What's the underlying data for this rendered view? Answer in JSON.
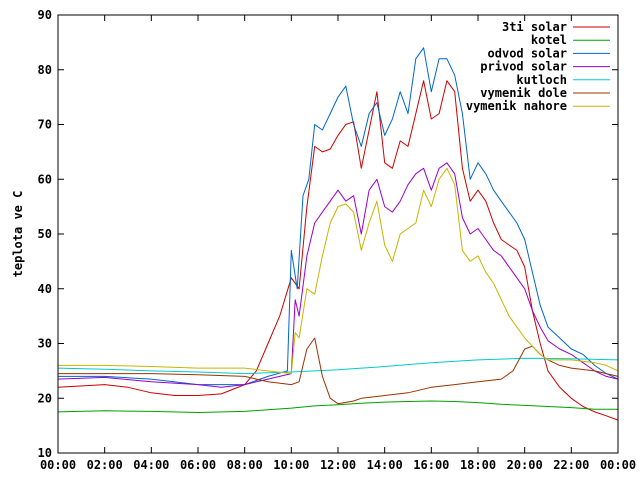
{
  "chart_data": {
    "type": "line",
    "title": "",
    "xlabel": "",
    "ylabel": "teplota ve C",
    "xlim": [
      "00:00",
      "24:00"
    ],
    "ylim": [
      10,
      90
    ],
    "x_ticks": [
      "00:00",
      "02:00",
      "04:00",
      "06:00",
      "08:00",
      "10:00",
      "12:00",
      "14:00",
      "16:00",
      "18:00",
      "20:00",
      "22:00",
      "00:00"
    ],
    "y_ticks": [
      10,
      20,
      30,
      40,
      50,
      60,
      70,
      80,
      90
    ],
    "grid": false,
    "legend_position": "top-right",
    "series": [
      {
        "name": "3ti solar",
        "color": "#cc0000",
        "points": [
          [
            "00:00",
            22
          ],
          [
            "02:00",
            22.5
          ],
          [
            "03:00",
            22
          ],
          [
            "04:00",
            21
          ],
          [
            "05:00",
            20.5
          ],
          [
            "06:00",
            20.5
          ],
          [
            "07:00",
            20.8
          ],
          [
            "08:00",
            22.5
          ],
          [
            "08:30",
            25
          ],
          [
            "09:00",
            30
          ],
          [
            "09:30",
            35
          ],
          [
            "10:00",
            42
          ],
          [
            "10:20",
            40
          ],
          [
            "10:40",
            55
          ],
          [
            "11:00",
            66
          ],
          [
            "11:20",
            65
          ],
          [
            "11:40",
            65.5
          ],
          [
            "12:00",
            68
          ],
          [
            "12:20",
            70
          ],
          [
            "12:40",
            70.5
          ],
          [
            "13:00",
            62
          ],
          [
            "13:20",
            69
          ],
          [
            "13:40",
            76
          ],
          [
            "14:00",
            63
          ],
          [
            "14:20",
            62
          ],
          [
            "14:40",
            67
          ],
          [
            "15:00",
            66
          ],
          [
            "15:20",
            72
          ],
          [
            "15:40",
            78
          ],
          [
            "16:00",
            71
          ],
          [
            "16:20",
            72
          ],
          [
            "16:40",
            78
          ],
          [
            "17:00",
            76
          ],
          [
            "17:20",
            62
          ],
          [
            "17:40",
            56
          ],
          [
            "18:00",
            58
          ],
          [
            "18:20",
            56
          ],
          [
            "18:40",
            52
          ],
          [
            "19:00",
            49
          ],
          [
            "19:20",
            48
          ],
          [
            "19:40",
            47
          ],
          [
            "20:00",
            44
          ],
          [
            "20:20",
            36
          ],
          [
            "20:40",
            30
          ],
          [
            "21:00",
            25
          ],
          [
            "21:30",
            22
          ],
          [
            "22:00",
            20
          ],
          [
            "22:30",
            18.5
          ],
          [
            "23:00",
            17.5
          ],
          [
            "23:30",
            16.8
          ],
          [
            "24:00",
            16
          ]
        ]
      },
      {
        "name": "kotel",
        "color": "#00a000",
        "points": [
          [
            "00:00",
            17.5
          ],
          [
            "02:00",
            17.7
          ],
          [
            "04:00",
            17.6
          ],
          [
            "06:00",
            17.4
          ],
          [
            "08:00",
            17.6
          ],
          [
            "10:00",
            18.2
          ],
          [
            "11:00",
            18.6
          ],
          [
            "12:00",
            18.8
          ],
          [
            "13:00",
            19.1
          ],
          [
            "14:00",
            19.3
          ],
          [
            "15:00",
            19.4
          ],
          [
            "16:00",
            19.5
          ],
          [
            "17:00",
            19.4
          ],
          [
            "18:00",
            19.2
          ],
          [
            "19:00",
            18.9
          ],
          [
            "20:00",
            18.7
          ],
          [
            "21:00",
            18.5
          ],
          [
            "22:00",
            18.3
          ],
          [
            "23:00",
            18
          ],
          [
            "24:00",
            18
          ]
        ]
      },
      {
        "name": "odvod solar",
        "color": "#0066cc",
        "points": [
          [
            "00:00",
            24
          ],
          [
            "02:00",
            24
          ],
          [
            "04:00",
            23.5
          ],
          [
            "06:00",
            22.5
          ],
          [
            "08:00",
            22.5
          ],
          [
            "09:00",
            24
          ],
          [
            "09:50",
            25
          ],
          [
            "10:00",
            47
          ],
          [
            "10:15",
            40
          ],
          [
            "10:30",
            57
          ],
          [
            "10:45",
            60
          ],
          [
            "11:00",
            70
          ],
          [
            "11:20",
            69
          ],
          [
            "11:40",
            72
          ],
          [
            "12:00",
            75
          ],
          [
            "12:20",
            77
          ],
          [
            "12:40",
            70
          ],
          [
            "13:00",
            66
          ],
          [
            "13:20",
            72
          ],
          [
            "13:40",
            74
          ],
          [
            "14:00",
            68
          ],
          [
            "14:20",
            71
          ],
          [
            "14:40",
            76
          ],
          [
            "15:00",
            72
          ],
          [
            "15:20",
            82
          ],
          [
            "15:40",
            84
          ],
          [
            "16:00",
            76
          ],
          [
            "16:20",
            82
          ],
          [
            "16:40",
            82
          ],
          [
            "17:00",
            79
          ],
          [
            "17:20",
            72
          ],
          [
            "17:40",
            60
          ],
          [
            "18:00",
            63
          ],
          [
            "18:20",
            61
          ],
          [
            "18:40",
            58
          ],
          [
            "19:00",
            56
          ],
          [
            "19:20",
            54
          ],
          [
            "19:40",
            52
          ],
          [
            "20:00",
            49
          ],
          [
            "20:20",
            43
          ],
          [
            "20:40",
            37
          ],
          [
            "21:00",
            33
          ],
          [
            "21:30",
            31
          ],
          [
            "22:00",
            29
          ],
          [
            "22:30",
            28
          ],
          [
            "23:00",
            26
          ],
          [
            "23:30",
            24.5
          ],
          [
            "24:00",
            23.5
          ]
        ]
      },
      {
        "name": "privod solar",
        "color": "#9900cc",
        "points": [
          [
            "00:00",
            23.5
          ],
          [
            "02:00",
            23.8
          ],
          [
            "04:00",
            23
          ],
          [
            "06:00",
            22.5
          ],
          [
            "07:00",
            22
          ],
          [
            "08:00",
            22.5
          ],
          [
            "09:00",
            23.5
          ],
          [
            "10:00",
            24.5
          ],
          [
            "10:10",
            38
          ],
          [
            "10:20",
            35
          ],
          [
            "10:40",
            46
          ],
          [
            "11:00",
            52
          ],
          [
            "11:20",
            54
          ],
          [
            "11:40",
            56
          ],
          [
            "12:00",
            58
          ],
          [
            "12:20",
            56
          ],
          [
            "12:40",
            57
          ],
          [
            "13:00",
            50
          ],
          [
            "13:20",
            58
          ],
          [
            "13:40",
            60
          ],
          [
            "14:00",
            55
          ],
          [
            "14:20",
            54
          ],
          [
            "14:40",
            56
          ],
          [
            "15:00",
            59
          ],
          [
            "15:20",
            61
          ],
          [
            "15:40",
            62
          ],
          [
            "16:00",
            58
          ],
          [
            "16:20",
            62
          ],
          [
            "16:40",
            63
          ],
          [
            "17:00",
            61
          ],
          [
            "17:20",
            53
          ],
          [
            "17:40",
            50
          ],
          [
            "18:00",
            51
          ],
          [
            "18:20",
            49
          ],
          [
            "18:40",
            47
          ],
          [
            "19:00",
            46
          ],
          [
            "19:20",
            44
          ],
          [
            "19:40",
            42
          ],
          [
            "20:00",
            40
          ],
          [
            "20:20",
            36
          ],
          [
            "20:40",
            33
          ],
          [
            "21:00",
            30.5
          ],
          [
            "21:30",
            29
          ],
          [
            "22:00",
            28
          ],
          [
            "22:30",
            26.5
          ],
          [
            "23:00",
            25
          ],
          [
            "23:30",
            24
          ],
          [
            "24:00",
            23.5
          ]
        ]
      },
      {
        "name": "kutloch",
        "color": "#00cccc",
        "points": [
          [
            "00:00",
            25.5
          ],
          [
            "02:00",
            25.3
          ],
          [
            "04:00",
            25
          ],
          [
            "06:00",
            24.8
          ],
          [
            "08:00",
            24.5
          ],
          [
            "10:00",
            24.8
          ],
          [
            "12:00",
            25.2
          ],
          [
            "14:00",
            25.8
          ],
          [
            "16:00",
            26.5
          ],
          [
            "18:00",
            27
          ],
          [
            "20:00",
            27.3
          ],
          [
            "22:00",
            27.2
          ],
          [
            "24:00",
            27
          ]
        ]
      },
      {
        "name": "vymenik dole",
        "color": "#993300",
        "points": [
          [
            "00:00",
            24.5
          ],
          [
            "02:00",
            24.5
          ],
          [
            "04:00",
            24.5
          ],
          [
            "06:00",
            24.3
          ],
          [
            "08:00",
            24
          ],
          [
            "09:00",
            23
          ],
          [
            "10:00",
            22.5
          ],
          [
            "10:20",
            23
          ],
          [
            "10:40",
            29
          ],
          [
            "11:00",
            31
          ],
          [
            "11:20",
            24
          ],
          [
            "11:40",
            20
          ],
          [
            "12:00",
            19
          ],
          [
            "12:40",
            19.5
          ],
          [
            "13:00",
            20
          ],
          [
            "14:00",
            20.5
          ],
          [
            "15:00",
            21
          ],
          [
            "16:00",
            22
          ],
          [
            "17:00",
            22.5
          ],
          [
            "18:00",
            23
          ],
          [
            "19:00",
            23.5
          ],
          [
            "19:30",
            25
          ],
          [
            "20:00",
            29
          ],
          [
            "20:20",
            29.5
          ],
          [
            "20:40",
            28
          ],
          [
            "21:00",
            27
          ],
          [
            "21:30",
            26
          ],
          [
            "22:00",
            25.5
          ],
          [
            "23:00",
            25
          ],
          [
            "24:00",
            24
          ]
        ]
      },
      {
        "name": "vymenik nahore",
        "color": "#c8b400",
        "points": [
          [
            "00:00",
            26
          ],
          [
            "02:00",
            26
          ],
          [
            "04:00",
            25.8
          ],
          [
            "06:00",
            25.5
          ],
          [
            "08:00",
            25.5
          ],
          [
            "09:00",
            25
          ],
          [
            "10:00",
            24.5
          ],
          [
            "10:10",
            32
          ],
          [
            "10:20",
            31
          ],
          [
            "10:40",
            40
          ],
          [
            "11:00",
            39
          ],
          [
            "11:20",
            46
          ],
          [
            "11:40",
            52
          ],
          [
            "12:00",
            55
          ],
          [
            "12:20",
            55.5
          ],
          [
            "12:40",
            54
          ],
          [
            "13:00",
            47
          ],
          [
            "13:20",
            52
          ],
          [
            "13:40",
            56
          ],
          [
            "14:00",
            48
          ],
          [
            "14:20",
            45
          ],
          [
            "14:40",
            50
          ],
          [
            "15:00",
            51
          ],
          [
            "15:20",
            52
          ],
          [
            "15:40",
            58
          ],
          [
            "16:00",
            55
          ],
          [
            "16:20",
            60
          ],
          [
            "16:40",
            62
          ],
          [
            "17:00",
            59
          ],
          [
            "17:20",
            47
          ],
          [
            "17:40",
            45
          ],
          [
            "18:00",
            46
          ],
          [
            "18:20",
            43
          ],
          [
            "18:40",
            41
          ],
          [
            "19:00",
            38
          ],
          [
            "19:20",
            35
          ],
          [
            "19:40",
            33
          ],
          [
            "20:00",
            31
          ],
          [
            "20:20",
            29.5
          ],
          [
            "20:40",
            28
          ],
          [
            "21:00",
            27
          ],
          [
            "22:00",
            27
          ],
          [
            "23:00",
            26.5
          ],
          [
            "23:30",
            26
          ],
          [
            "24:00",
            25
          ]
        ]
      }
    ]
  }
}
